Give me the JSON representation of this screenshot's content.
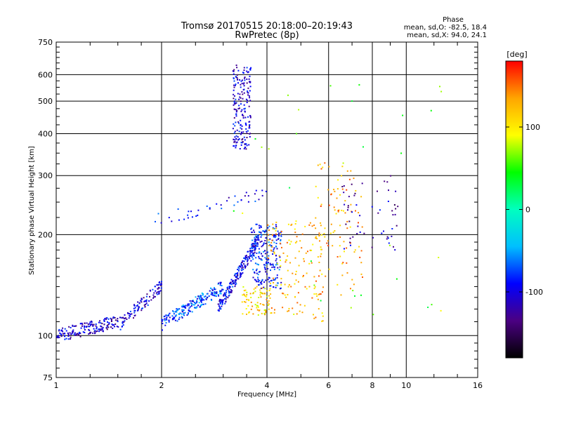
{
  "chart_data": {
    "type": "scatter",
    "title": "Tromsø 20170515 20:18:00–20:19:43",
    "subtitle": "RwPretec (8p)",
    "xlabel": "Frequency [MHz]",
    "ylabel": "Stationary phase Virtual Height [km]",
    "x_scale": "log",
    "y_scale": "log",
    "xlim": [
      1,
      16
    ],
    "ylim": [
      75,
      750
    ],
    "x_ticks": [
      1,
      2,
      4,
      6,
      8,
      10,
      16
    ],
    "x_tick_labels": [
      "1",
      "2",
      "4",
      "6",
      "8",
      "10",
      "16"
    ],
    "y_ticks": [
      75,
      100,
      200,
      300,
      400,
      500,
      600,
      750
    ],
    "y_tick_labels": [
      "75",
      "100",
      "200",
      "300",
      "400",
      "500",
      "600",
      "750"
    ],
    "grid": true,
    "phase_info": {
      "heading": "Phase",
      "line_o": "mean, sd,O: -82.5, 18.4",
      "line_x": "mean, sd,X:  94.0, 24.1"
    },
    "colorbar": {
      "label": "[deg]",
      "range": [
        -180,
        180
      ],
      "ticks": [
        100,
        0,
        -100
      ],
      "tick_labels": [
        "100",
        "0",
        "-100"
      ],
      "colors": [
        "#000000",
        "#4b0082",
        "#0000ff",
        "#00bfff",
        "#00ffbf",
        "#00ff00",
        "#ffff00",
        "#ffa500",
        "#ff0000"
      ]
    },
    "clusters": [
      {
        "f": [
          1.0,
          1.5
        ],
        "h": [
          100,
          110
        ],
        "phase": -110,
        "n": 170,
        "shape": "rising"
      },
      {
        "f": [
          1.5,
          2.0
        ],
        "h": [
          107,
          140
        ],
        "phase": -105,
        "n": 110,
        "shape": "rising"
      },
      {
        "f": [
          2.0,
          3.0
        ],
        "h": [
          108,
          140
        ],
        "phase": -75,
        "n": 200,
        "shape": "rising"
      },
      {
        "f": [
          2.9,
          3.8
        ],
        "h": [
          120,
          195
        ],
        "phase": -95,
        "n": 220,
        "shape": "rising"
      },
      {
        "f": [
          3.2,
          3.6
        ],
        "h": [
          360,
          640
        ],
        "phase": -105,
        "n": 200,
        "shape": "cloud"
      },
      {
        "f": [
          3.6,
          4.4
        ],
        "h": [
          138,
          215
        ],
        "phase": -85,
        "n": 220,
        "shape": "cloud"
      },
      {
        "f": [
          3.4,
          4.1
        ],
        "h": [
          115,
          140
        ],
        "phase": 110,
        "n": 80,
        "shape": "cloud"
      },
      {
        "f": [
          4.0,
          5.8
        ],
        "h": [
          110,
          220
        ],
        "phase": 120,
        "n": 150,
        "shape": "cloud"
      },
      {
        "f": [
          5.5,
          7.5
        ],
        "h": [
          130,
          330
        ],
        "phase": 130,
        "n": 100,
        "shape": "cloud"
      },
      {
        "f": [
          6.5,
          9.5
        ],
        "h": [
          180,
          300
        ],
        "phase": -115,
        "n": 55,
        "shape": "cloud"
      },
      {
        "f": [
          1.85,
          4.0
        ],
        "h": [
          220,
          265
        ],
        "phase": -95,
        "n": 40,
        "shape": "rising"
      },
      {
        "f": [
          3.0,
          13.0
        ],
        "h": [
          100,
          600
        ],
        "phase": 60,
        "n": 35,
        "shape": "cloud"
      }
    ]
  }
}
